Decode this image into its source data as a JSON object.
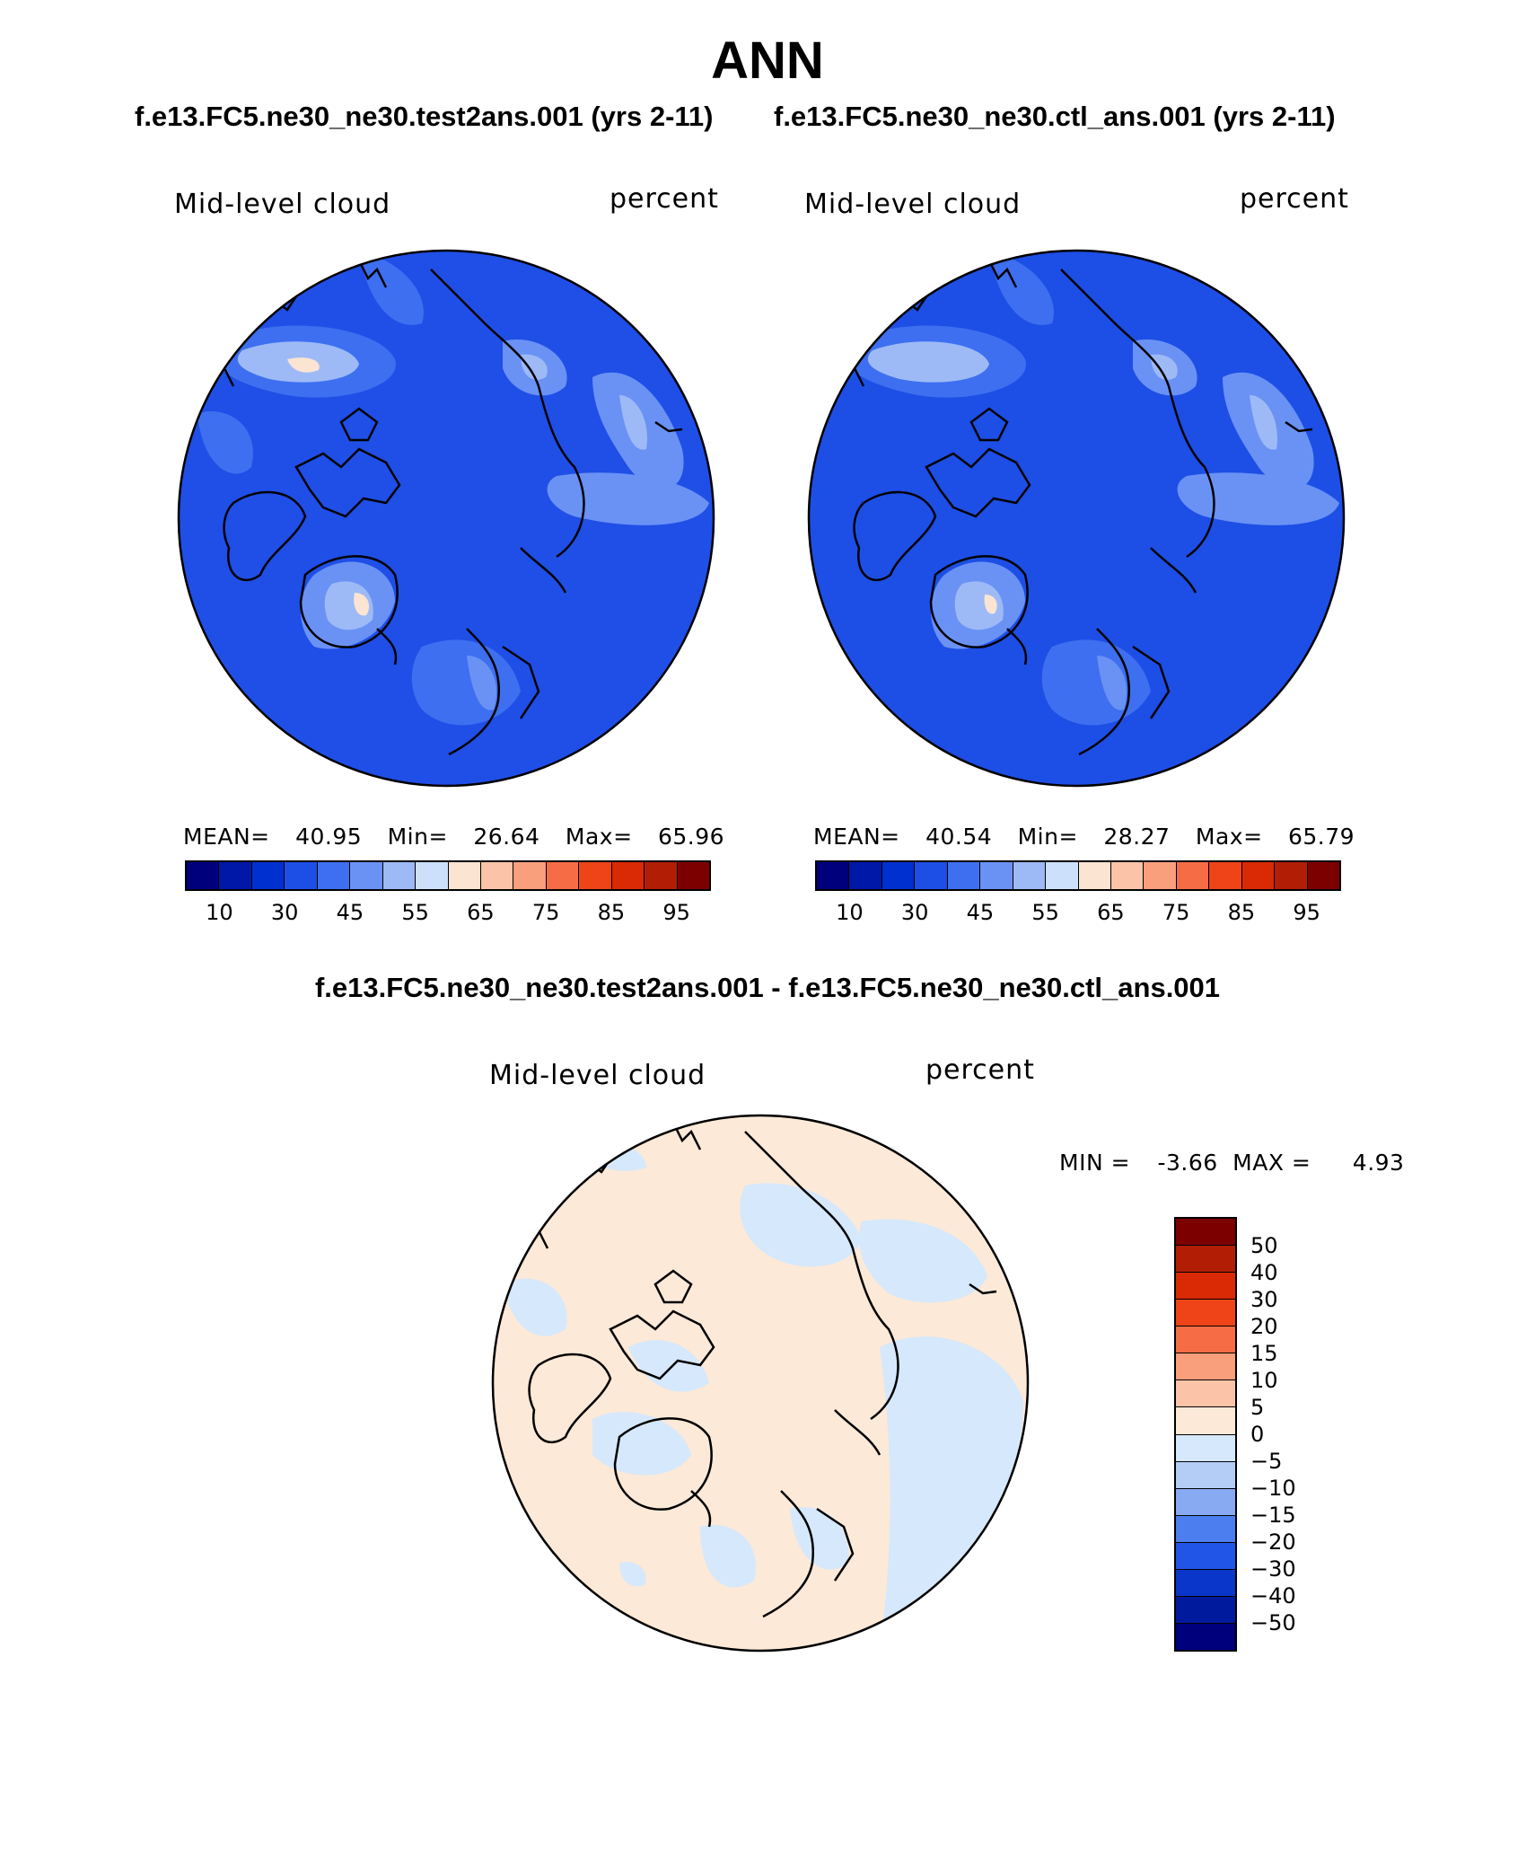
{
  "title": "ANN",
  "case_a_header": "f.e13.FC5.ne30_ne30.test2ans.001 (yrs 2-11)",
  "case_b_header": "f.e13.FC5.ne30_ne30.ctl_ans.001 (yrs 2-11)",
  "diff_header": "f.e13.FC5.ne30_ne30.test2ans.001 - f.e13.FC5.ne30_ne30.ctl_ans.001",
  "panels": [
    {
      "variable": "Mid-level cloud",
      "units": "percent",
      "stats": {
        "mean_label": "MEAN=",
        "mean": "40.95",
        "min_label": "Min=",
        "min": "26.64",
        "max_label": "Max=",
        "max": "65.96"
      }
    },
    {
      "variable": "Mid-level cloud",
      "units": "percent",
      "stats": {
        "mean_label": "MEAN=",
        "mean": "40.54",
        "min_label": "Min=",
        "min": "28.27",
        "max_label": "Max=",
        "max": "65.79"
      }
    }
  ],
  "diff_panel": {
    "variable": "Mid-level cloud",
    "units": "percent",
    "min_label": "MIN =",
    "min": "-3.66",
    "max_label": "MAX =",
    "max": "4.93"
  },
  "field_colorbar": {
    "colors": [
      "#00007d",
      "#0018a8",
      "#0030d0",
      "#1d4fe6",
      "#3d6ff0",
      "#6a92f5",
      "#9dbaf7",
      "#cde0fb",
      "#fce4d2",
      "#fbc4a8",
      "#fa9f7c",
      "#f66d45",
      "#ee4418",
      "#da2a05",
      "#b21e05",
      "#7d0000"
    ],
    "labels": [
      "10",
      "30",
      "45",
      "55",
      "65",
      "75",
      "85",
      "95"
    ]
  },
  "diff_colorbar": {
    "colors_top_to_bottom": [
      "#7d0000",
      "#b21e05",
      "#da2a05",
      "#ee4418",
      "#f66d45",
      "#fa9f7c",
      "#fbc4a8",
      "#fce9d8",
      "#d6e8fb",
      "#b3cdf7",
      "#87aaf3",
      "#4c7ef0",
      "#2155e8",
      "#0a36c9",
      "#001a9e",
      "#00007d"
    ],
    "labels": [
      "50",
      "40",
      "30",
      "20",
      "15",
      "10",
      "5",
      "0",
      "-5",
      "-10",
      "-15",
      "-20",
      "-30",
      "-40",
      "-50"
    ]
  },
  "chart_data": {
    "type": "heatmap",
    "title": "ANN",
    "panels": [
      {
        "name": "f.e13.FC5.ne30_ne30.test2ans.001 (yrs 2-11)",
        "field": "Mid-level cloud",
        "units": "percent",
        "mean": 40.95,
        "min": 26.64,
        "max": 65.96,
        "levels": [
          10,
          15,
          20,
          25,
          30,
          35,
          40,
          45,
          50,
          55,
          60,
          65,
          70,
          75,
          80,
          85,
          90,
          95
        ]
      },
      {
        "name": "f.e13.FC5.ne30_ne30.ctl_ans.001 (yrs 2-11)",
        "field": "Mid-level cloud",
        "units": "percent",
        "mean": 40.54,
        "min": 28.27,
        "max": 65.79,
        "levels": [
          10,
          15,
          20,
          25,
          30,
          35,
          40,
          45,
          50,
          55,
          60,
          65,
          70,
          75,
          80,
          85,
          90,
          95
        ]
      },
      {
        "name": "f.e13.FC5.ne30_ne30.test2ans.001 - f.e13.FC5.ne30_ne30.ctl_ans.001",
        "field": "Mid-level cloud",
        "units": "percent",
        "min": -3.66,
        "max": 4.93,
        "levels": [
          -50,
          -40,
          -30,
          -20,
          -15,
          -10,
          -5,
          0,
          5,
          10,
          15,
          20,
          30,
          40,
          50
        ]
      }
    ],
    "projection": "polar stereographic (north)"
  }
}
